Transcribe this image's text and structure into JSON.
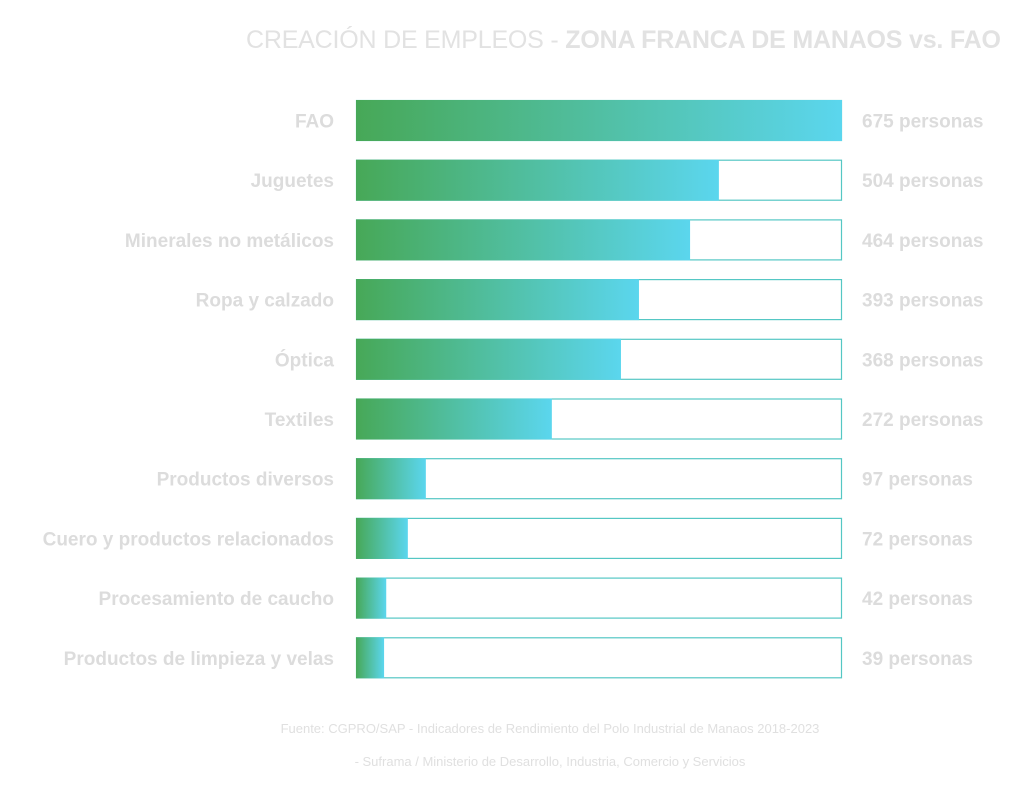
{
  "title": {
    "light": "CREACIÓN DE EMPLEOS - ",
    "bold": "ZONA FRANCA DE MANAOS vs. FAO"
  },
  "chart_data": {
    "type": "bar",
    "orientation": "horizontal",
    "categories": [
      "FAO",
      "Juguetes",
      "Minerales no metálicos",
      "Ropa y calzado",
      "Óptica",
      "Textiles",
      "Productos diversos",
      "Cuero y productos relacionados",
      "Procesamiento de caucho",
      "Productos de limpieza y velas"
    ],
    "values": [
      675,
      504,
      464,
      393,
      368,
      272,
      97,
      72,
      42,
      39
    ],
    "value_labels": [
      "675 personas",
      "504 personas",
      "464 personas",
      "393 personas",
      "368 personas",
      "272 personas",
      "97 personas",
      "72 personas",
      "42 personas",
      "39 personas"
    ],
    "xlim": [
      0,
      675
    ],
    "grid": false,
    "legend": "none"
  },
  "colors": {
    "gradient_start": "#47a857",
    "gradient_end": "#5bd6ee",
    "bar_outline": "#55c7c4",
    "label_text": "#dcdcdc"
  },
  "source": {
    "line1": "Fuente: CGPRO/SAP - Indicadores de Rendimiento del Polo Industrial de Manaos 2018-2023",
    "line2": "- Suframa / Ministerio de Desarrollo, Industria, Comercio y Servicios"
  }
}
